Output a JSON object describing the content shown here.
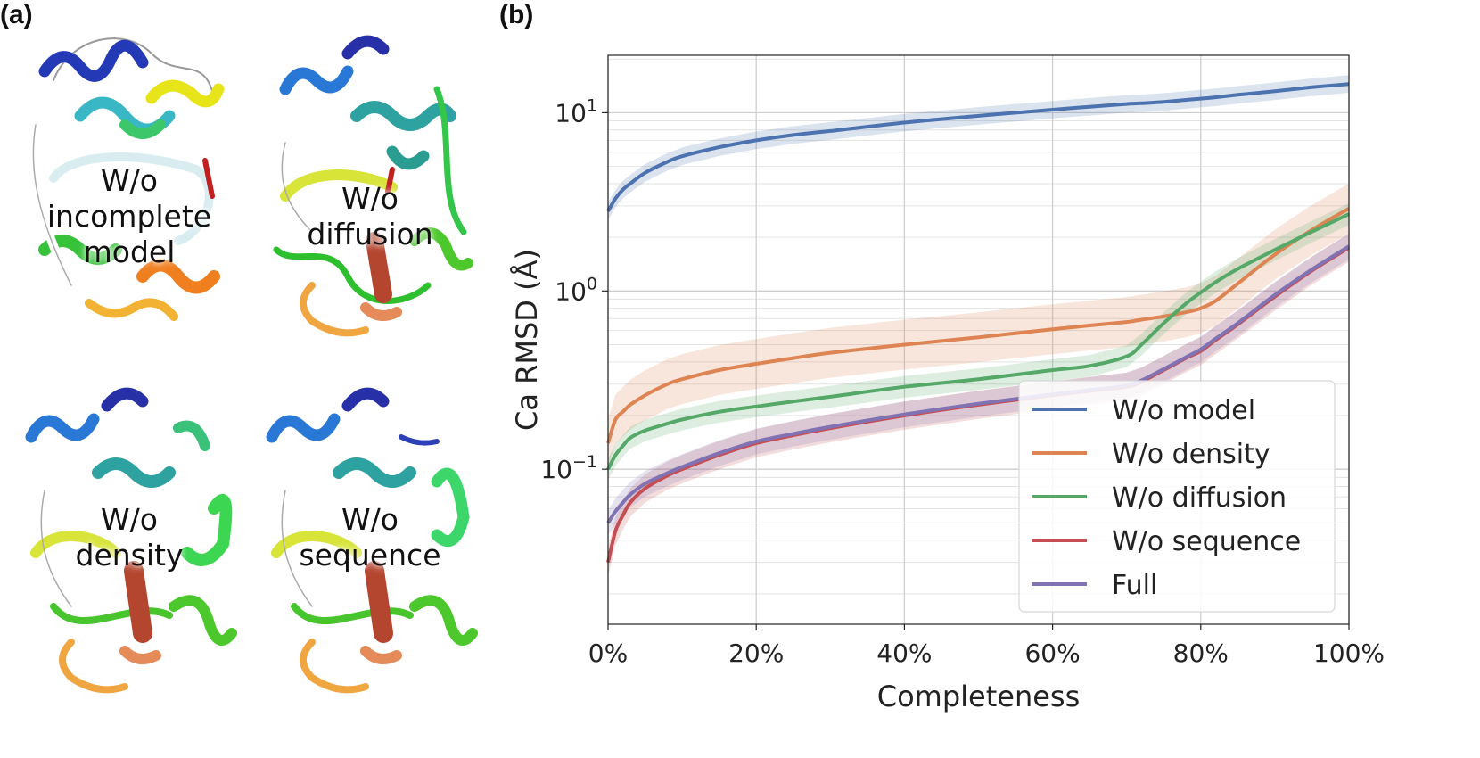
{
  "panel_a": {
    "label": "(a)",
    "structures": [
      {
        "lines": [
          "W/o",
          "incomplete",
          "model"
        ]
      },
      {
        "lines": [
          "W/o",
          "diffusion"
        ]
      },
      {
        "lines": [
          "W/o",
          "density"
        ]
      },
      {
        "lines": [
          "W/o",
          "sequence"
        ]
      }
    ]
  },
  "panel_b": {
    "label": "(b)"
  },
  "chart_data": {
    "type": "line",
    "xlabel": "Completeness",
    "ylabel": "Ca RMSD (Å)",
    "xlim": [
      0,
      100
    ],
    "ylim": [
      0.0135,
      21
    ],
    "yscale": "log",
    "grid": true,
    "legend_position": "lower-right",
    "x_ticks": [
      0,
      20,
      40,
      60,
      80,
      100
    ],
    "x_tick_labels": [
      "0%",
      "20%",
      "40%",
      "60%",
      "80%",
      "100%"
    ],
    "y_ticks": [
      0.1,
      1,
      10
    ],
    "y_tick_labels": [
      {
        "base": "10",
        "exp": "−1"
      },
      {
        "base": "10",
        "exp": "0"
      },
      {
        "base": "10",
        "exp": "1"
      }
    ],
    "x": [
      0,
      1,
      2,
      3,
      5,
      8,
      10,
      15,
      20,
      25,
      30,
      40,
      50,
      60,
      65,
      70,
      72,
      75,
      78,
      80,
      82,
      85,
      90,
      95,
      100
    ],
    "series": [
      {
        "name": "W/o model",
        "color": "#4c72b0",
        "band_factor": 1.12,
        "values": [
          2.8,
          3.3,
          3.7,
          4.0,
          4.6,
          5.3,
          5.7,
          6.4,
          7.0,
          7.5,
          7.9,
          8.8,
          9.6,
          10.4,
          10.8,
          11.2,
          11.3,
          11.5,
          11.8,
          12.0,
          12.2,
          12.6,
          13.2,
          13.9,
          14.5
        ]
      },
      {
        "name": "W/o density",
        "color": "#dd8452",
        "band_factor": 1.38,
        "values": [
          0.14,
          0.19,
          0.21,
          0.23,
          0.26,
          0.3,
          0.32,
          0.36,
          0.39,
          0.42,
          0.45,
          0.5,
          0.55,
          0.61,
          0.64,
          0.67,
          0.69,
          0.72,
          0.76,
          0.8,
          0.88,
          1.1,
          1.6,
          2.2,
          2.9
        ]
      },
      {
        "name": "W/o diffusion",
        "color": "#55a868",
        "band_factor": 1.15,
        "values": [
          0.1,
          0.12,
          0.135,
          0.15,
          0.165,
          0.18,
          0.19,
          0.21,
          0.225,
          0.24,
          0.255,
          0.29,
          0.32,
          0.36,
          0.38,
          0.43,
          0.5,
          0.66,
          0.85,
          0.98,
          1.12,
          1.33,
          1.7,
          2.15,
          2.7
        ]
      },
      {
        "name": "W/o sequence",
        "color": "#c44e52",
        "band_factor": 1.2,
        "values": [
          0.03,
          0.045,
          0.055,
          0.065,
          0.078,
          0.092,
          0.1,
          0.12,
          0.14,
          0.155,
          0.17,
          0.2,
          0.23,
          0.26,
          0.275,
          0.29,
          0.31,
          0.36,
          0.42,
          0.46,
          0.53,
          0.65,
          0.93,
          1.3,
          1.75
        ]
      },
      {
        "name": "Full",
        "color": "#8172b3",
        "band_factor": 1.18,
        "values": [
          0.05,
          0.058,
          0.065,
          0.072,
          0.083,
          0.095,
          0.103,
          0.123,
          0.143,
          0.158,
          0.173,
          0.203,
          0.233,
          0.263,
          0.278,
          0.295,
          0.315,
          0.365,
          0.425,
          0.47,
          0.54,
          0.66,
          0.95,
          1.32,
          1.78
        ]
      }
    ]
  }
}
